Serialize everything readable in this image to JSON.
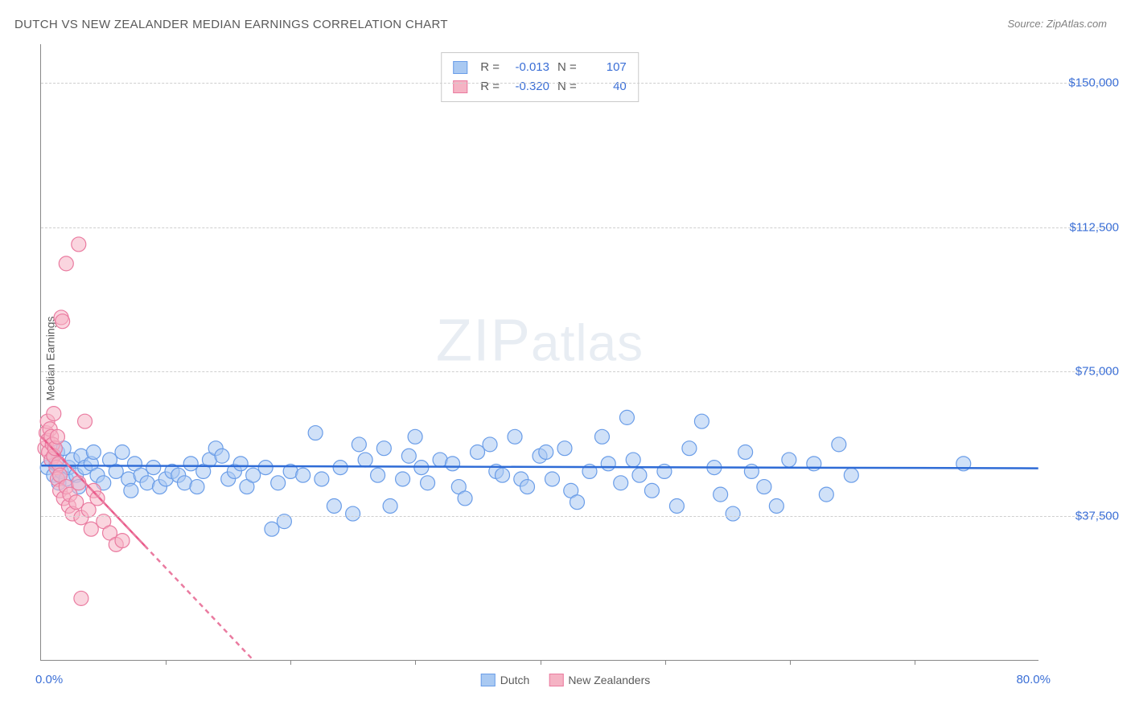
{
  "title": "DUTCH VS NEW ZEALANDER MEDIAN EARNINGS CORRELATION CHART",
  "source": "Source: ZipAtlas.com",
  "y_axis_label": "Median Earnings",
  "watermark": "ZIPatlas",
  "chart": {
    "type": "scatter",
    "xlim": [
      0,
      80
    ],
    "ylim": [
      0,
      160000
    ],
    "x_min_label": "0.0%",
    "x_max_label": "80.0%",
    "x_tick_step": 10,
    "y_ticks": [
      37500,
      75000,
      112500,
      150000
    ],
    "y_tick_labels": [
      "$37,500",
      "$75,000",
      "$112,500",
      "$150,000"
    ],
    "grid_color": "#cfcfcf",
    "axis_color": "#888888",
    "background_color": "#ffffff",
    "label_color": "#3b6fd6",
    "point_radius": 9,
    "point_stroke_width": 1.2,
    "regression_line_width": 2.5
  },
  "series": [
    {
      "name": "Dutch",
      "fill": "#a9c9f2",
      "stroke": "#6a9de8",
      "fill_opacity": 0.55,
      "r_label": "R =",
      "r_value": "-0.013",
      "n_label": "N =",
      "n_value": "107",
      "regression": {
        "x1": 0,
        "y1": 50500,
        "x2": 80,
        "y2": 49800,
        "color": "#2e6bd6",
        "dash": "none"
      },
      "points": [
        [
          0.5,
          50000
        ],
        [
          0.8,
          52000
        ],
        [
          1.0,
          48000
        ],
        [
          1.2,
          51000
        ],
        [
          1.3,
          54000
        ],
        [
          1.4,
          46000
        ],
        [
          1.6,
          49000
        ],
        [
          1.8,
          55000
        ],
        [
          2.0,
          47000
        ],
        [
          2.2,
          50000
        ],
        [
          2.5,
          52000
        ],
        [
          2.8,
          48000
        ],
        [
          3.0,
          45000
        ],
        [
          3.2,
          53000
        ],
        [
          3.5,
          50000
        ],
        [
          4.0,
          51000
        ],
        [
          4.2,
          54000
        ],
        [
          4.5,
          48000
        ],
        [
          5.0,
          46000
        ],
        [
          5.5,
          52000
        ],
        [
          6.0,
          49000
        ],
        [
          6.5,
          54000
        ],
        [
          7.0,
          47000
        ],
        [
          7.2,
          44000
        ],
        [
          7.5,
          51000
        ],
        [
          8.0,
          48000
        ],
        [
          8.5,
          46000
        ],
        [
          9.0,
          50000
        ],
        [
          9.5,
          45000
        ],
        [
          10.0,
          47000
        ],
        [
          10.5,
          49000
        ],
        [
          11.0,
          48000
        ],
        [
          11.5,
          46000
        ],
        [
          12.0,
          51000
        ],
        [
          12.5,
          45000
        ],
        [
          13.0,
          49000
        ],
        [
          13.5,
          52000
        ],
        [
          14.0,
          55000
        ],
        [
          14.5,
          53000
        ],
        [
          15.0,
          47000
        ],
        [
          15.5,
          49000
        ],
        [
          16.0,
          51000
        ],
        [
          16.5,
          45000
        ],
        [
          17.0,
          48000
        ],
        [
          18.0,
          50000
        ],
        [
          18.5,
          34000
        ],
        [
          19.0,
          46000
        ],
        [
          19.5,
          36000
        ],
        [
          20.0,
          49000
        ],
        [
          21.0,
          48000
        ],
        [
          22.0,
          59000
        ],
        [
          22.5,
          47000
        ],
        [
          23.5,
          40000
        ],
        [
          24.0,
          50000
        ],
        [
          25.0,
          38000
        ],
        [
          25.5,
          56000
        ],
        [
          26.0,
          52000
        ],
        [
          27.0,
          48000
        ],
        [
          27.5,
          55000
        ],
        [
          28.0,
          40000
        ],
        [
          29.0,
          47000
        ],
        [
          29.5,
          53000
        ],
        [
          30.0,
          58000
        ],
        [
          30.5,
          50000
        ],
        [
          31.0,
          46000
        ],
        [
          32.0,
          52000
        ],
        [
          33.0,
          51000
        ],
        [
          33.5,
          45000
        ],
        [
          34.0,
          42000
        ],
        [
          35.0,
          54000
        ],
        [
          36.0,
          56000
        ],
        [
          36.5,
          49000
        ],
        [
          37.0,
          48000
        ],
        [
          38.0,
          58000
        ],
        [
          38.5,
          47000
        ],
        [
          39.0,
          45000
        ],
        [
          40.0,
          53000
        ],
        [
          40.5,
          54000
        ],
        [
          41.0,
          47000
        ],
        [
          42.0,
          55000
        ],
        [
          42.5,
          44000
        ],
        [
          43.0,
          41000
        ],
        [
          44.0,
          49000
        ],
        [
          45.0,
          58000
        ],
        [
          45.5,
          51000
        ],
        [
          46.5,
          46000
        ],
        [
          47.0,
          63000
        ],
        [
          47.5,
          52000
        ],
        [
          48.0,
          48000
        ],
        [
          49.0,
          44000
        ],
        [
          50.0,
          49000
        ],
        [
          51.0,
          40000
        ],
        [
          52.0,
          55000
        ],
        [
          53.0,
          62000
        ],
        [
          54.0,
          50000
        ],
        [
          54.5,
          43000
        ],
        [
          55.5,
          38000
        ],
        [
          56.5,
          54000
        ],
        [
          57.0,
          49000
        ],
        [
          58.0,
          45000
        ],
        [
          59.0,
          40000
        ],
        [
          60.0,
          52000
        ],
        [
          62.0,
          51000
        ],
        [
          63.0,
          43000
        ],
        [
          64.0,
          56000
        ],
        [
          65.0,
          48000
        ],
        [
          74.0,
          51000
        ]
      ]
    },
    {
      "name": "New Zealanders",
      "fill": "#f5b3c4",
      "stroke": "#ea7ba0",
      "fill_opacity": 0.55,
      "r_label": "R =",
      "r_value": "-0.320",
      "n_label": "N =",
      "n_value": "40",
      "regression": {
        "x1": 0,
        "y1": 58000,
        "x2": 17,
        "y2": 0,
        "color": "#ea7ba0",
        "dash": "6,5"
      },
      "regression_solid": {
        "x1": 0,
        "y1": 58000,
        "x2": 8.5,
        "y2": 29000,
        "color": "#ea5a8a"
      },
      "points": [
        [
          0.3,
          55000
        ],
        [
          0.4,
          59000
        ],
        [
          0.5,
          62000
        ],
        [
          0.5,
          57000
        ],
        [
          0.6,
          54000
        ],
        [
          0.7,
          60000
        ],
        [
          0.8,
          52000
        ],
        [
          0.8,
          58000
        ],
        [
          0.9,
          56000
        ],
        [
          1.0,
          64000
        ],
        [
          1.0,
          53000
        ],
        [
          1.1,
          55000
        ],
        [
          1.2,
          50000
        ],
        [
          1.3,
          47000
        ],
        [
          1.3,
          58000
        ],
        [
          1.4,
          51000
        ],
        [
          1.5,
          48000
        ],
        [
          1.5,
          44000
        ],
        [
          1.6,
          89000
        ],
        [
          1.7,
          88000
        ],
        [
          1.8,
          42000
        ],
        [
          2.0,
          103000
        ],
        [
          2.0,
          45000
        ],
        [
          2.2,
          40000
        ],
        [
          2.3,
          43000
        ],
        [
          2.5,
          38000
        ],
        [
          2.8,
          41000
        ],
        [
          3.0,
          108000
        ],
        [
          3.0,
          46000
        ],
        [
          3.2,
          37000
        ],
        [
          3.5,
          62000
        ],
        [
          3.8,
          39000
        ],
        [
          4.0,
          34000
        ],
        [
          4.2,
          44000
        ],
        [
          4.5,
          42000
        ],
        [
          5.0,
          36000
        ],
        [
          5.5,
          33000
        ],
        [
          6.0,
          30000
        ],
        [
          3.2,
          16000
        ],
        [
          6.5,
          31000
        ]
      ]
    }
  ],
  "bottom_legend": {
    "items": [
      {
        "label": "Dutch",
        "fill": "#a9c9f2",
        "stroke": "#6a9de8"
      },
      {
        "label": "New Zealanders",
        "fill": "#f5b3c4",
        "stroke": "#ea7ba0"
      }
    ]
  }
}
